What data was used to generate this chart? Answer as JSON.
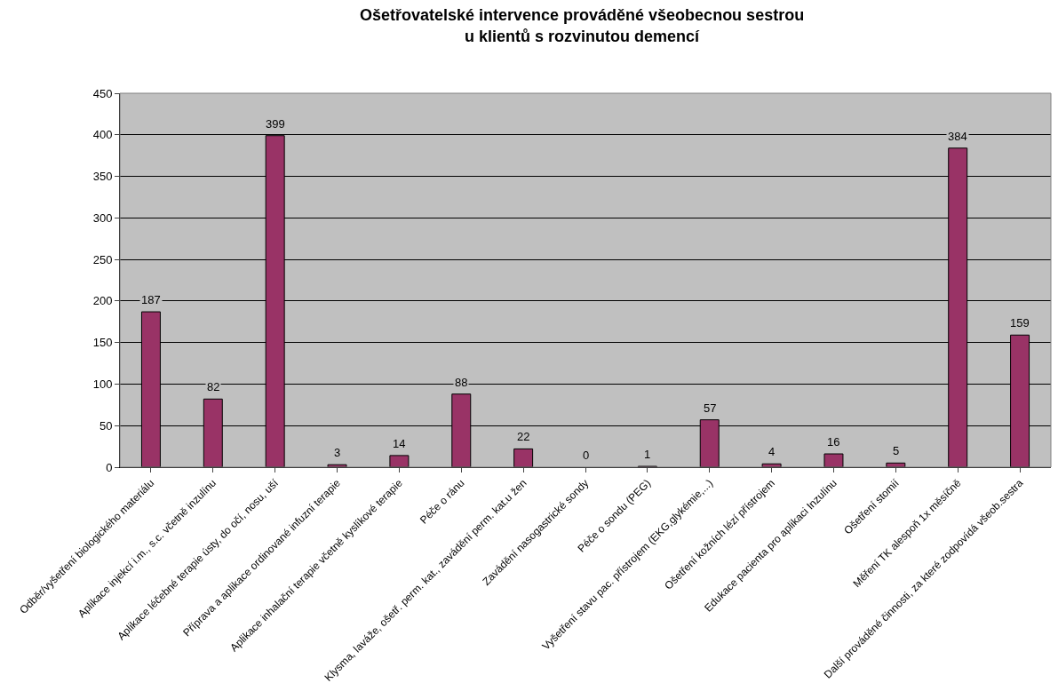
{
  "chart_data": {
    "type": "bar",
    "title": "Ošetřovatelské intervence prováděné všeobecnou sestrou\nu klientů s rozvinutou demencí",
    "categories": [
      "Odběr/vyšetření biologického materiálu",
      "Aplikace injekcí i.m., s.c. včetně inzulínu",
      "Aplikace léčebné terapie ústy, do očí, nosu, uší",
      "Příprava a aplikace ordinované infuzní terapie",
      "Aplikace inhalační terapie včetně kyslíkové terapie",
      "Péče o ránu",
      "Klysma, laváže, ošetř. perm. kat., zavádění perm. kat.u žen",
      "Zavádění nasogastrické sondy",
      "Péče o sondu (PEG)",
      "Vyšetření stavu pac. přístrojem (EKG,glykémie,...)",
      "Ošetření kožních lézí přístrojem",
      "Edukace pacienta pro aplikaci Inzulínu",
      "Ošetření stomií",
      "Měření TK alespoň 1x měsíčně",
      "Další prováděné činnosti, za které zodpovídá všeob.sestra"
    ],
    "values": [
      187,
      82,
      399,
      3,
      14,
      88,
      22,
      0,
      1,
      57,
      4,
      16,
      5,
      384,
      159
    ],
    "color": "#993366",
    "ylim": [
      0,
      450
    ],
    "yticks": [
      0,
      50,
      100,
      150,
      200,
      250,
      300,
      350,
      400,
      450
    ],
    "grid": "y",
    "data_labels": true,
    "legend": false
  }
}
